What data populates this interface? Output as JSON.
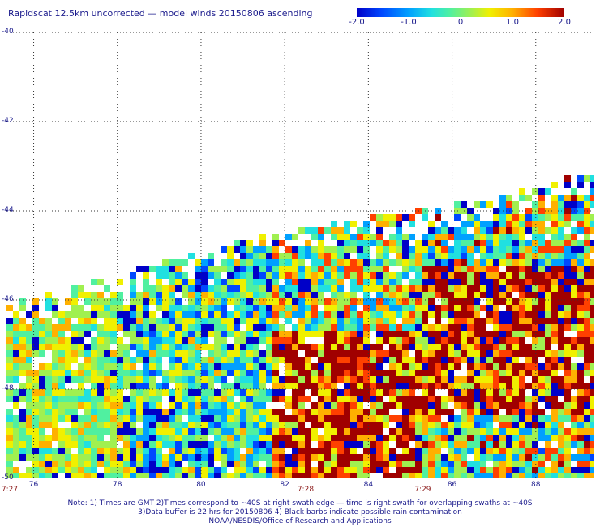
{
  "title": "Rapidscat 12.5km uncorrected — model winds 20150806 ascending",
  "colorbar": {
    "labels": [
      "-2.0",
      "-1.0",
      "0",
      "1.0",
      "2.0"
    ],
    "values": [
      -2.0,
      -1.0,
      0,
      1.0,
      2.0
    ],
    "range": [
      -2.0,
      2.0
    ],
    "colors": [
      "#0000c8",
      "#0048ff",
      "#00a0ff",
      "#20e0e0",
      "#50f0a0",
      "#a0f050",
      "#f0f000",
      "#ffb000",
      "#ff4000",
      "#a00000"
    ]
  },
  "axes": {
    "lat_labels": [
      "-40",
      "-42",
      "-44",
      "-46",
      "-48",
      "-50"
    ],
    "lat_values": [
      -40,
      -42,
      -44,
      -46,
      -48,
      -50
    ],
    "lon_labels": [
      "76",
      "78",
      "80",
      "82",
      "84",
      "86",
      "88"
    ],
    "lon_values": [
      76,
      78,
      80,
      82,
      84,
      86,
      88
    ],
    "lon_range": [
      75.35,
      89.4
    ],
    "lat_range": [
      -40,
      -50
    ],
    "time_labels": [
      "7:27",
      "7:28",
      "7:29"
    ],
    "time_lons": [
      75.35,
      82.5,
      85.3
    ]
  },
  "notes": [
    "Note: 1) Times are GMT 2)Times correspond to ~40S at right swath edge — time is right swath for overlapping swaths at ~40S",
    "3)Data buffer is 22 hrs for 20150806 4) Black barbs indicate possible rain contamination",
    "NOAA/NESDIS/Office of Research and Applications"
  ]
}
